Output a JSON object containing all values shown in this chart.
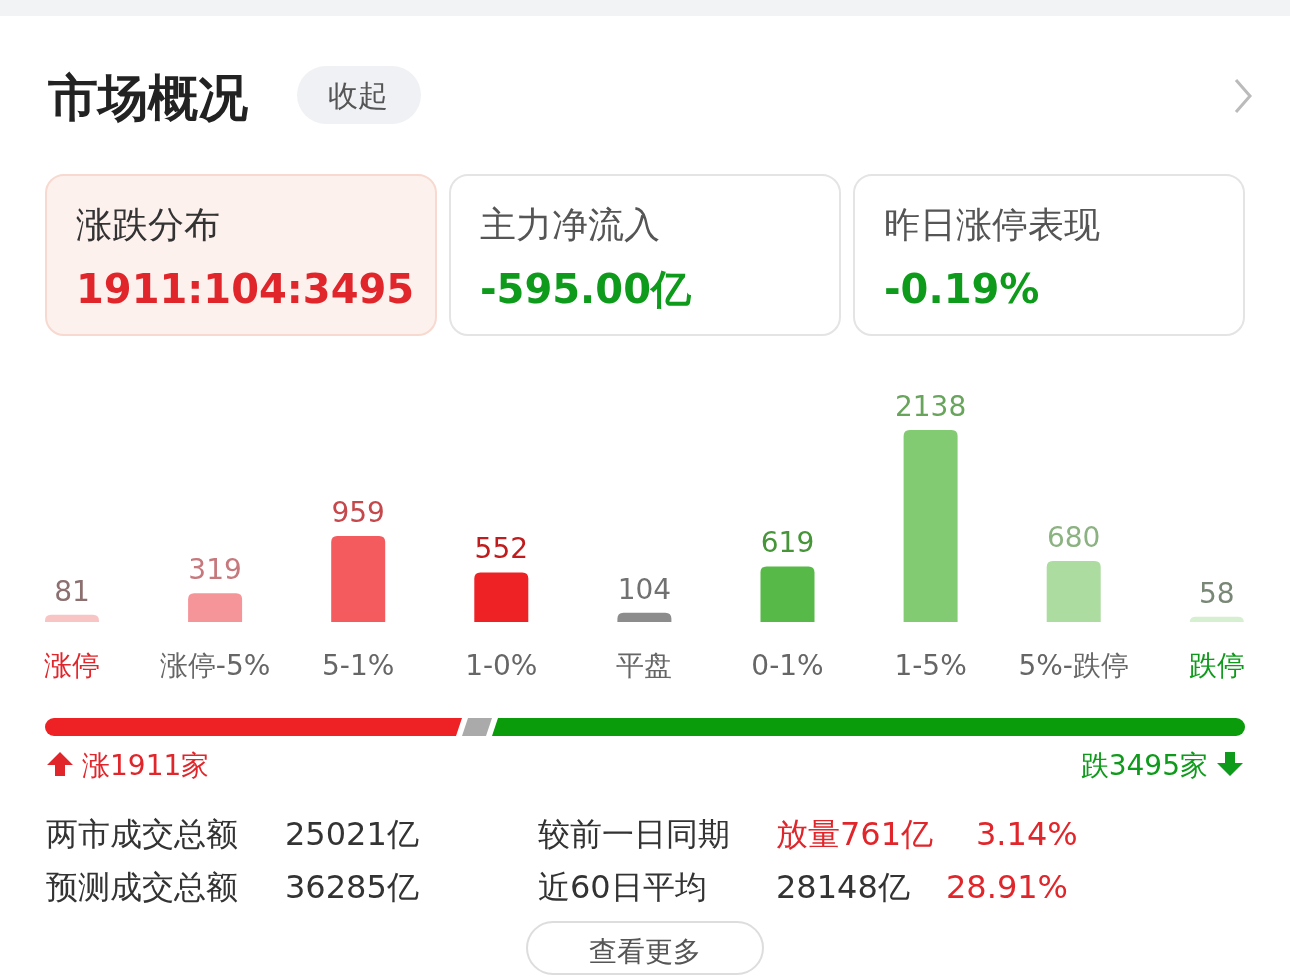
{
  "chart_data": {
    "type": "bar",
    "title": "市场概况",
    "categories": [
      "涨停",
      "涨停-5%",
      "5-1%",
      "1-0%",
      "平盘",
      "0-1%",
      "1-5%",
      "5%-跌停",
      "跌停"
    ],
    "values": [
      81,
      319,
      959,
      552,
      104,
      619,
      2138,
      680,
      58
    ],
    "colors": [
      "#f8c4c4",
      "#f5959a",
      "#f45b5e",
      "#ee2224",
      "#8c8c8c",
      "#57b947",
      "#82cb73",
      "#acdca0",
      "#d6efd0"
    ],
    "data_labels": true,
    "annotations": [
      "收起",
      "涨跌分布",
      "1911:104:3495",
      "主力净流入",
      "-595.00亿",
      "昨日涨停表现",
      "-0.19%",
      "涨1911家",
      "跌3495家",
      "两市成交总额",
      "25021亿",
      "较前一日同期",
      "放量761亿",
      "3.14%",
      "预测成交总额",
      "36285亿",
      "近60日平均",
      "28148亿",
      "28.91%",
      "查看更多"
    ]
  }
}
